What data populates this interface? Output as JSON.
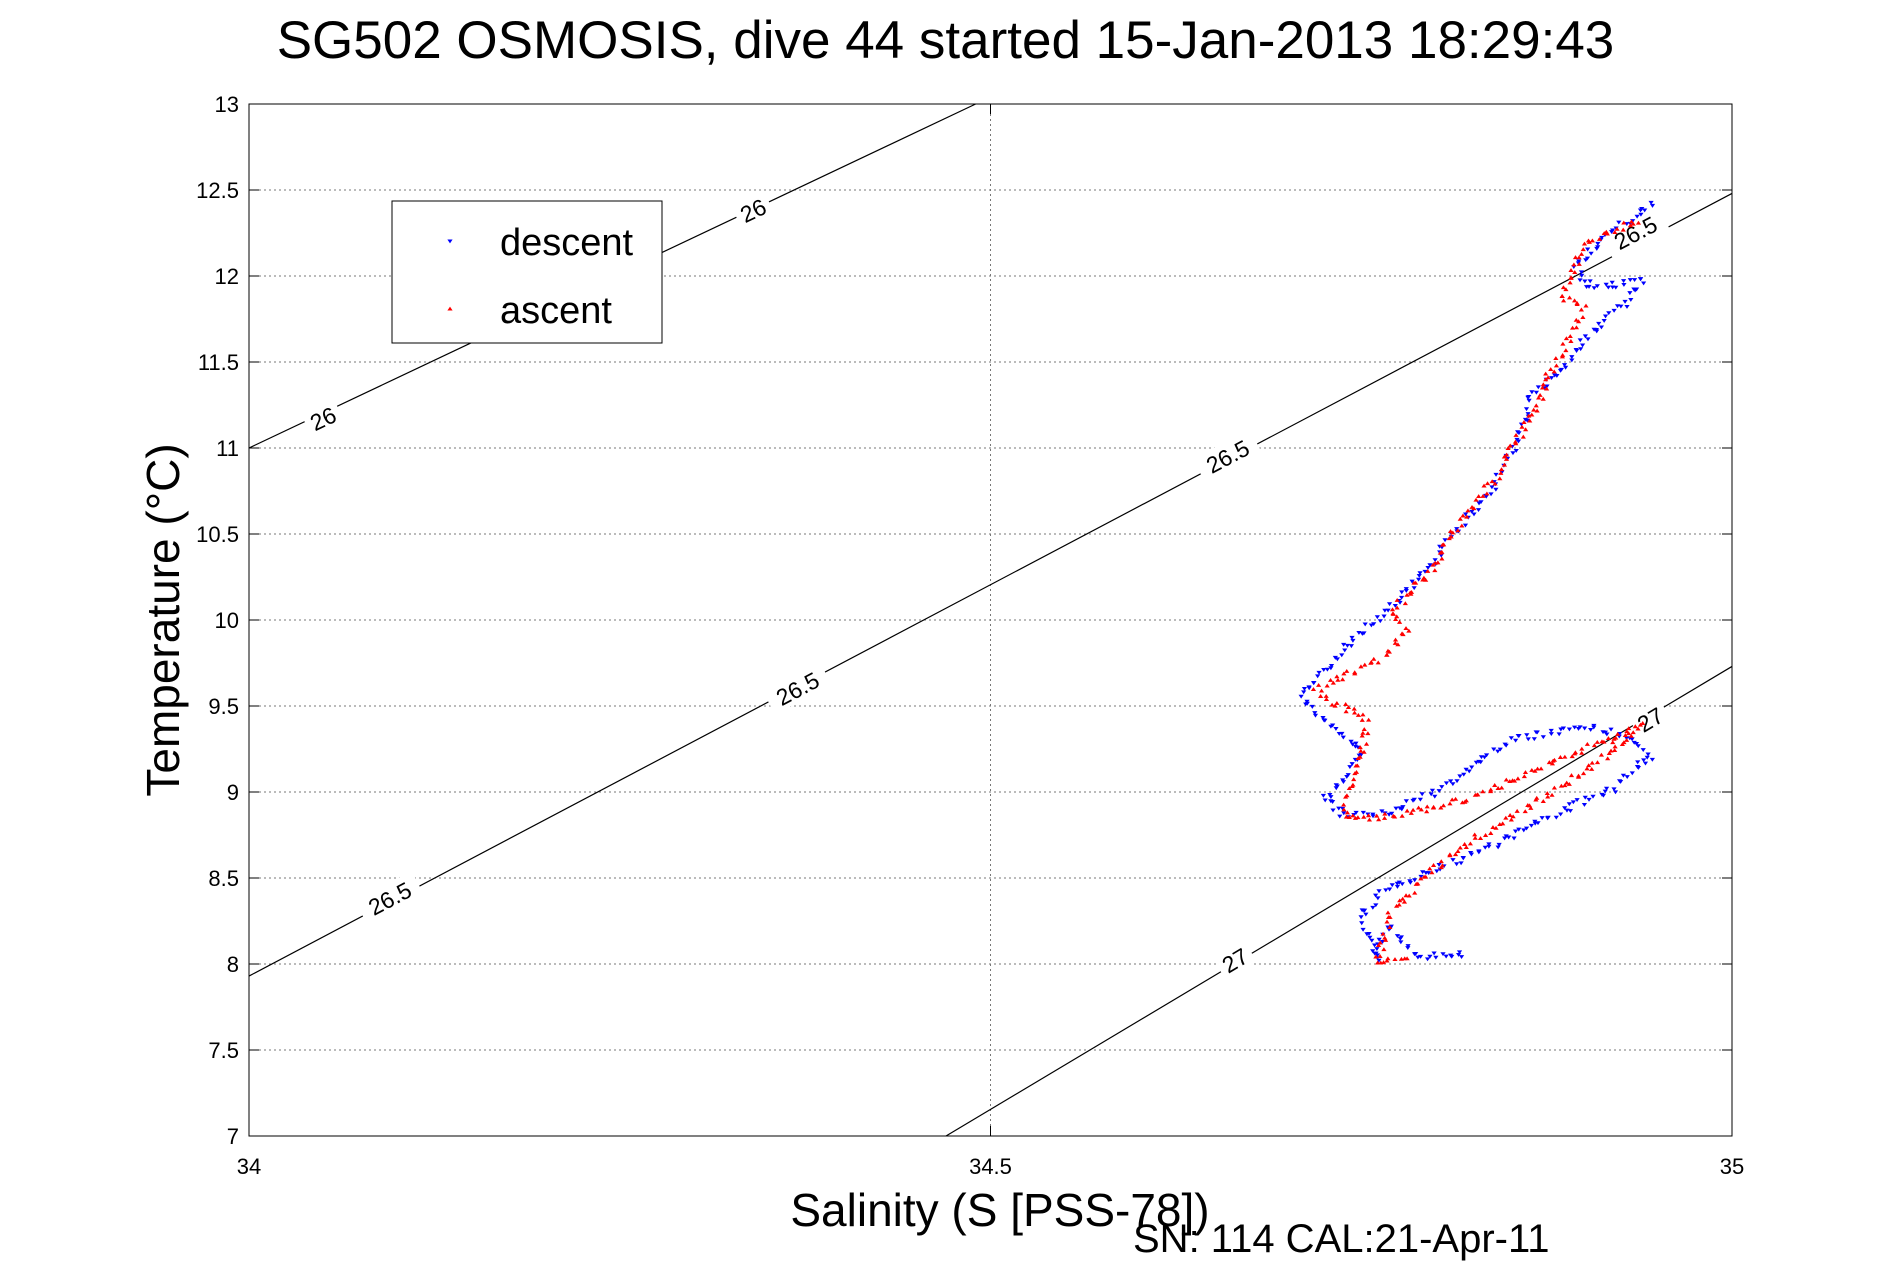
{
  "chart_data": {
    "type": "scatter",
    "title": "SG502 OSMOSIS, dive 44 started 15-Jan-2013 18:29:43",
    "xlabel": "Salinity (S [PSS-78])",
    "ylabel": "Temperature (°C)",
    "xlim": [
      34,
      35
    ],
    "ylim": [
      7,
      13
    ],
    "x_ticks": [
      "34",
      "34.5",
      "35"
    ],
    "y_ticks": [
      "7",
      "7.5",
      "8",
      "8.5",
      "9",
      "9.5",
      "10",
      "10.5",
      "11",
      "11.5",
      "12",
      "12.5",
      "13"
    ],
    "grid": true,
    "legend_position": "top-left",
    "footer": "SN: 114  CAL:21-Apr-11",
    "colors": {
      "descent": "#0000ff",
      "ascent": "#ff0000",
      "isopycnal": "#000000"
    },
    "contours": [
      {
        "label": "26",
        "points": [
          [
            34.0,
            11.0
          ],
          [
            34.49,
            13.0
          ]
        ],
        "label_positions": [
          [
            34.05,
            11.17
          ],
          [
            34.34,
            12.38
          ]
        ]
      },
      {
        "label": "26.5",
        "points": [
          [
            34.0,
            7.93
          ],
          [
            35.0,
            12.48
          ]
        ],
        "label_positions": [
          [
            34.095,
            8.38
          ],
          [
            34.37,
            9.6
          ],
          [
            34.66,
            10.95
          ],
          [
            34.935,
            12.25
          ]
        ]
      },
      {
        "label": "27",
        "points": [
          [
            34.47,
            7.0
          ],
          [
            35.0,
            9.73
          ]
        ],
        "label_positions": [
          [
            34.665,
            8.02
          ],
          [
            34.945,
            9.42
          ]
        ]
      }
    ],
    "series": [
      {
        "name": "descent",
        "marker": "triangle-down",
        "path": [
          [
            34.82,
            8.06
          ],
          [
            34.79,
            8.04
          ],
          [
            34.78,
            8.1
          ],
          [
            34.77,
            8.22
          ],
          [
            34.762,
            8.13
          ],
          [
            34.76,
            8.02
          ],
          [
            34.75,
            8.3
          ],
          [
            34.77,
            8.45
          ],
          [
            34.8,
            8.55
          ],
          [
            34.84,
            8.7
          ],
          [
            34.88,
            8.87
          ],
          [
            34.92,
            9.02
          ],
          [
            34.945,
            9.2
          ],
          [
            34.93,
            9.33
          ],
          [
            34.9,
            9.38
          ],
          [
            34.85,
            9.3
          ],
          [
            34.83,
            9.18
          ],
          [
            34.8,
            9.0
          ],
          [
            34.78,
            8.92
          ],
          [
            34.76,
            8.87
          ],
          [
            34.74,
            8.86
          ],
          [
            34.725,
            8.95
          ],
          [
            34.735,
            9.05
          ],
          [
            34.74,
            9.12
          ],
          [
            34.75,
            9.25
          ],
          [
            34.735,
            9.35
          ],
          [
            34.72,
            9.45
          ],
          [
            34.71,
            9.55
          ],
          [
            34.72,
            9.65
          ],
          [
            34.735,
            9.8
          ],
          [
            34.745,
            9.9
          ],
          [
            34.76,
            10.0
          ],
          [
            34.775,
            10.12
          ],
          [
            34.79,
            10.25
          ],
          [
            34.805,
            10.42
          ],
          [
            34.82,
            10.58
          ],
          [
            34.835,
            10.72
          ],
          [
            34.845,
            10.88
          ],
          [
            34.855,
            11.03
          ],
          [
            34.86,
            11.17
          ],
          [
            34.865,
            11.3
          ],
          [
            34.88,
            11.42
          ],
          [
            34.895,
            11.57
          ],
          [
            34.91,
            11.72
          ],
          [
            34.93,
            11.85
          ],
          [
            34.94,
            11.98
          ],
          [
            34.905,
            11.92
          ],
          [
            34.895,
            12.05
          ],
          [
            34.91,
            12.2
          ],
          [
            34.93,
            12.32
          ],
          [
            34.95,
            12.42
          ]
        ]
      },
      {
        "name": "ascent",
        "marker": "triangle-up",
        "path": [
          [
            34.78,
            8.05
          ],
          [
            34.76,
            8.0
          ],
          [
            34.765,
            8.12
          ],
          [
            34.77,
            8.3
          ],
          [
            34.79,
            8.48
          ],
          [
            34.81,
            8.63
          ],
          [
            34.84,
            8.8
          ],
          [
            34.88,
            9.0
          ],
          [
            34.91,
            9.18
          ],
          [
            34.93,
            9.33
          ],
          [
            34.94,
            9.38
          ],
          [
            34.9,
            9.25
          ],
          [
            34.86,
            9.1
          ],
          [
            34.83,
            8.98
          ],
          [
            34.79,
            8.9
          ],
          [
            34.76,
            8.84
          ],
          [
            34.74,
            8.85
          ],
          [
            34.74,
            8.98
          ],
          [
            34.745,
            9.1
          ],
          [
            34.75,
            9.25
          ],
          [
            34.755,
            9.4
          ],
          [
            34.74,
            9.5
          ],
          [
            34.73,
            9.52
          ],
          [
            34.72,
            9.6
          ],
          [
            34.745,
            9.7
          ],
          [
            34.765,
            9.78
          ],
          [
            34.78,
            9.95
          ],
          [
            34.77,
            10.05
          ],
          [
            34.785,
            10.18
          ],
          [
            34.8,
            10.3
          ],
          [
            34.81,
            10.48
          ],
          [
            34.825,
            10.65
          ],
          [
            34.84,
            10.82
          ],
          [
            34.85,
            10.98
          ],
          [
            34.86,
            11.12
          ],
          [
            34.87,
            11.25
          ],
          [
            34.875,
            11.42
          ],
          [
            34.885,
            11.55
          ],
          [
            34.895,
            11.7
          ],
          [
            34.9,
            11.82
          ],
          [
            34.885,
            11.88
          ],
          [
            34.89,
            11.98
          ],
          [
            34.895,
            12.08
          ],
          [
            34.9,
            12.18
          ],
          [
            34.92,
            12.27
          ],
          [
            34.94,
            12.33
          ]
        ]
      }
    ]
  }
}
